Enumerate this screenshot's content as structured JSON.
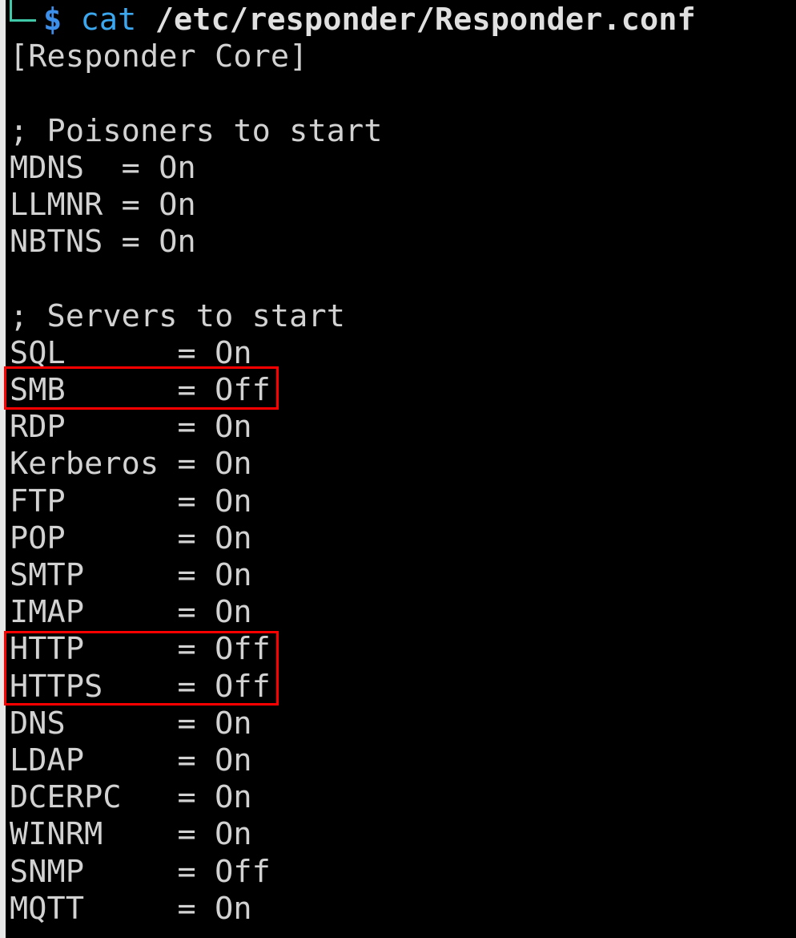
{
  "prompt": {
    "symbol": "$",
    "command": "cat",
    "argument": "/etc/responder/Responder.conf"
  },
  "lines": [
    "[Responder Core]",
    "",
    "; Poisoners to start",
    "MDNS  = On",
    "LLMNR = On",
    "NBTNS = On",
    "",
    "; Servers to start",
    "SQL      = On",
    "SMB      = Off",
    "RDP      = On",
    "Kerberos = On",
    "FTP      = On",
    "POP      = On",
    "SMTP     = On",
    "IMAP     = On",
    "HTTP     = Off",
    "HTTPS    = Off",
    "DNS      = On",
    "LDAP     = On",
    "DCERPC   = On",
    "WINRM    = On",
    "SNMP     = Off",
    "MQTT     = On"
  ],
  "highlights": [
    "SMB",
    "HTTP, HTTPS"
  ],
  "colors": {
    "highlight_box": "#ff0000",
    "prompt_line": "#3fc9a9",
    "command": "#3ba7ee",
    "text": "#d2d2d2"
  }
}
